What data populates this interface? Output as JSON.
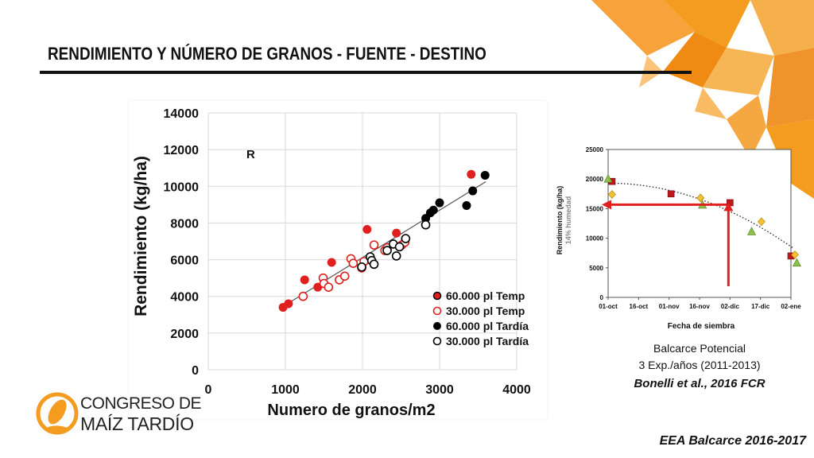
{
  "slide": {
    "title": "RENDIMIENTO Y NÚMERO DE GRANOS - FUENTE - DESTINO",
    "caption_line1": "Balcarce Potencial",
    "caption_line2": "3 Exp./años (2011-2013)",
    "caption_cite": "Bonelli et al., 2016 FCR",
    "footer": "EEA Balcarce 2016-2017",
    "logo_line1": "CONGRESO DE",
    "logo_line2": "MAÍZ TARDÍO",
    "colors": {
      "accent_orange": "#f39c1f",
      "red": "#e0201e",
      "black": "#000000"
    }
  },
  "chart_data": [
    {
      "type": "scatter",
      "annotation": "R",
      "xlabel": "Numero de granos/m2",
      "ylabel": "Rendimiento (kg/ha)",
      "xlim": [
        0,
        4000
      ],
      "ylim": [
        0,
        14000
      ],
      "xticks": [
        "0",
        "1000",
        "2000",
        "3000",
        "4000"
      ],
      "yticks": [
        "0",
        "2000",
        "4000",
        "6000",
        "8000",
        "10000",
        "12000",
        "14000"
      ],
      "grid": true,
      "legend_position": "bottom-right",
      "trendline": [
        [
          970,
          3450
        ],
        [
          3600,
          10250
        ]
      ],
      "series": [
        {
          "name": "60.000 pl Temp",
          "marker": "filled",
          "color": "#e0201e",
          "points": [
            [
              970,
              3400
            ],
            [
              1040,
              3600
            ],
            [
              1250,
              4900
            ],
            [
              1420,
              4500
            ],
            [
              1600,
              5850
            ],
            [
              2060,
              7650
            ],
            [
              2440,
              7450
            ],
            [
              3410,
              10650
            ]
          ]
        },
        {
          "name": "30.000 pl Temp",
          "marker": "open",
          "color": "#e0201e",
          "points": [
            [
              1230,
              4000
            ],
            [
              1490,
              5000
            ],
            [
              1500,
              4700
            ],
            [
              1560,
              4500
            ],
            [
              1700,
              4900
            ],
            [
              1770,
              5100
            ],
            [
              1850,
              6050
            ],
            [
              1880,
              5800
            ],
            [
              1990,
              5550
            ],
            [
              2020,
              5900
            ],
            [
              2150,
              6800
            ],
            [
              2290,
              6500
            ],
            [
              2320,
              6650
            ],
            [
              2510,
              6800
            ],
            [
              2550,
              6950
            ]
          ]
        },
        {
          "name": "60.000 pl Tardía",
          "marker": "filled",
          "color": "#000000",
          "points": [
            [
              2820,
              8250
            ],
            [
              2880,
              8550
            ],
            [
              2920,
              8700
            ],
            [
              3000,
              9100
            ],
            [
              3350,
              8950
            ],
            [
              3430,
              9750
            ],
            [
              3590,
              10600
            ]
          ]
        },
        {
          "name": "30.000 pl Tardía",
          "marker": "open",
          "color": "#000000",
          "points": [
            [
              1990,
              5600
            ],
            [
              2100,
              6150
            ],
            [
              2120,
              5950
            ],
            [
              2150,
              5750
            ],
            [
              2320,
              6500
            ],
            [
              2400,
              6850
            ],
            [
              2440,
              6200
            ],
            [
              2480,
              6700
            ],
            [
              2560,
              7150
            ],
            [
              2820,
              7900
            ]
          ]
        }
      ]
    },
    {
      "type": "scatter",
      "xlabel": "Fecha de siembra",
      "ylabel": "Rendimiento (kg/ha)",
      "ylabel2": "14% humedad",
      "xticks": [
        "01-oct",
        "16-oct",
        "01-nov",
        "16-nov",
        "02-dic",
        "17-dic",
        "02-ene"
      ],
      "yticks": [
        "0",
        "5000",
        "10000",
        "15000",
        "20000",
        "25000"
      ],
      "ylim": [
        0,
        25000
      ],
      "xlim_days": [
        0,
        93
      ],
      "trendline": "dotted-quadratic",
      "arrow_target_day": 62,
      "arrow_target_value": 14600,
      "series": [
        {
          "marker": "square",
          "color": "#c0161e",
          "points": [
            [
              2,
              19600
            ],
            [
              32,
              17500
            ],
            [
              62,
              16000
            ],
            [
              93,
              7000
            ]
          ]
        },
        {
          "marker": "diamond",
          "color": "#f5c132",
          "points": [
            [
              2,
              17400
            ],
            [
              47,
              16800
            ],
            [
              78,
              12800
            ],
            [
              95,
              7200
            ]
          ]
        },
        {
          "marker": "triangle",
          "color": "#8ec04a",
          "points": [
            [
              0,
              20000
            ],
            [
              48,
              15600
            ],
            [
              73,
              11100
            ],
            [
              96,
              5800
            ]
          ]
        }
      ]
    }
  ]
}
